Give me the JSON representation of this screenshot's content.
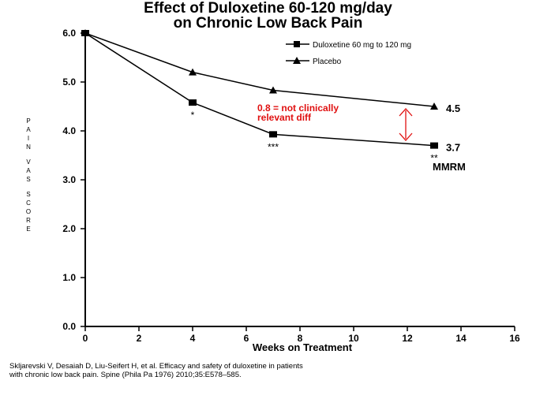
{
  "chart_data": {
    "type": "line",
    "title_line1": "Effect of Duloxetine 60-120 mg/day",
    "title_line2": "on Chronic Low Back Pain",
    "xlabel": "Weeks on Treatment",
    "ylabel": "PAIN VAS SCORE",
    "xlim": [
      0,
      16
    ],
    "ylim": [
      0,
      6
    ],
    "x_ticks": [
      "0",
      "2",
      "4",
      "6",
      "8",
      "10",
      "12",
      "14",
      "16"
    ],
    "y_ticks": [
      "0.0",
      "1.0",
      "2.0",
      "3.0",
      "4.0",
      "5.0",
      "6.0"
    ],
    "legend_position": "top-right",
    "series": [
      {
        "name": "Duloxetine 60 mg to 120 mg",
        "marker": "square",
        "x": [
          0,
          4,
          7,
          13
        ],
        "y": [
          6.0,
          4.58,
          3.93,
          3.7
        ],
        "significance": [
          "",
          "*",
          "***",
          "**"
        ],
        "end_label": "3.7"
      },
      {
        "name": "Placebo",
        "marker": "triangle",
        "x": [
          0,
          4,
          7,
          13
        ],
        "y": [
          6.0,
          5.2,
          4.83,
          4.5
        ],
        "end_label": "4.5"
      }
    ],
    "annotations": {
      "difference_line1": "0.8 = not clinically",
      "difference_line2": "relevant diff",
      "method_label": "MMRM"
    },
    "colors": {
      "line": "#000000",
      "annotation": "#e01010"
    }
  },
  "citation": {
    "line1": "Skljarevski V, Desaiah D, Liu-Seifert H, et al. Efficacy and safety of duloxetine in patients",
    "line2": "with chronic low back pain. Spine (Phila Pa 1976) 2010;35:E578–585."
  }
}
